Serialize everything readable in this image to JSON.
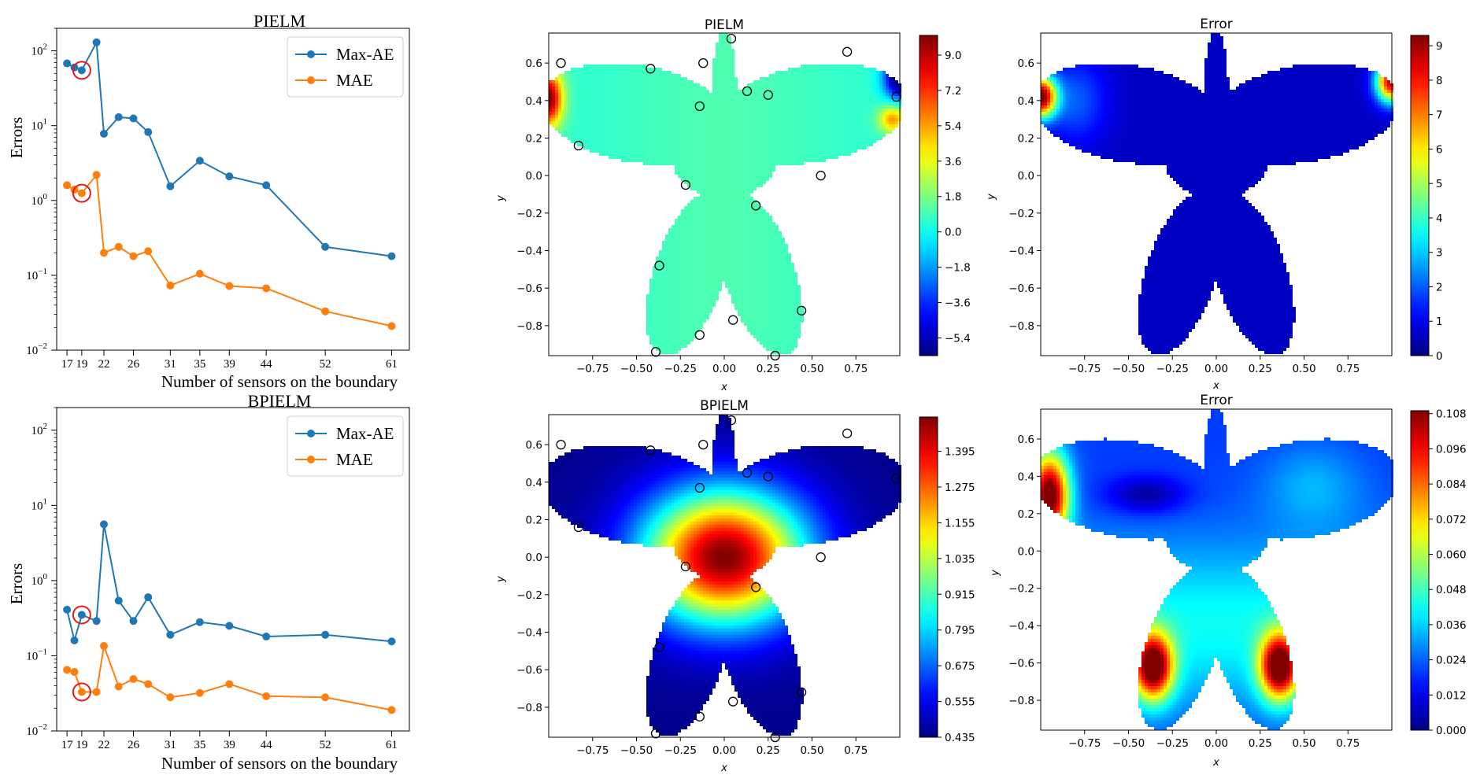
{
  "colors": {
    "max_ae": "#1f77b4",
    "mae": "#ff7f0e",
    "highlight": "#e31a1c"
  },
  "chart_data": [
    {
      "id": "pielm-errors",
      "type": "line",
      "title": "PIELM",
      "xlabel": "Number of sensors on the boundary",
      "ylabel": "Errors",
      "yscale": "log",
      "ylim": [
        0.01,
        200
      ],
      "yticks": [
        "10^{-2}",
        "10^{-1}",
        "10^{0}",
        "10^{1}",
        "10^{2}"
      ],
      "x_ticks": [
        17,
        19,
        22,
        26,
        31,
        35,
        39,
        44,
        52,
        61
      ],
      "legend": "top-right",
      "highlight_x": 19,
      "series": [
        {
          "name": "Max-AE",
          "color": "#1f77b4",
          "x": [
            17,
            18,
            19,
            21,
            22,
            24,
            26,
            28,
            31,
            35,
            39,
            44,
            52,
            61
          ],
          "y": [
            68,
            60,
            55,
            130,
            7.8,
            13,
            12.5,
            8.2,
            1.55,
            3.4,
            2.1,
            1.6,
            0.24,
            0.18
          ]
        },
        {
          "name": "MAE",
          "color": "#ff7f0e",
          "x": [
            17,
            18,
            19,
            21,
            22,
            24,
            26,
            28,
            31,
            35,
            39,
            44,
            52,
            61
          ],
          "y": [
            1.6,
            1.4,
            1.25,
            2.2,
            0.2,
            0.24,
            0.18,
            0.21,
            0.073,
            0.105,
            0.072,
            0.067,
            0.033,
            0.021
          ]
        }
      ]
    },
    {
      "id": "bpielm-errors",
      "type": "line",
      "title": "BPIELM",
      "xlabel": "Number of sensors on the boundary",
      "ylabel": "Errors",
      "yscale": "log",
      "ylim": [
        0.01,
        200
      ],
      "yticks": [
        "10^{-2}",
        "10^{-1}",
        "10^{0}",
        "10^{1}",
        "10^{2}"
      ],
      "x_ticks": [
        17,
        19,
        22,
        26,
        31,
        35,
        39,
        44,
        52,
        61
      ],
      "legend": "top-right",
      "highlight_x": 19,
      "series": [
        {
          "name": "Max-AE",
          "color": "#1f77b4",
          "x": [
            17,
            18,
            19,
            21,
            22,
            24,
            26,
            28,
            31,
            35,
            39,
            44,
            52,
            61
          ],
          "y": [
            0.41,
            0.16,
            0.35,
            0.29,
            5.6,
            0.54,
            0.29,
            0.6,
            0.19,
            0.28,
            0.25,
            0.18,
            0.19,
            0.155
          ]
        },
        {
          "name": "MAE",
          "color": "#ff7f0e",
          "x": [
            17,
            18,
            19,
            21,
            22,
            24,
            26,
            28,
            31,
            35,
            39,
            44,
            52,
            61
          ],
          "y": [
            0.065,
            0.061,
            0.033,
            0.033,
            0.135,
            0.039,
            0.049,
            0.042,
            0.028,
            0.032,
            0.042,
            0.029,
            0.028,
            0.019
          ]
        }
      ]
    },
    {
      "id": "pielm-field",
      "type": "heatmap",
      "title": "PIELM",
      "xlabel": "x",
      "ylabel": "y",
      "xlim": [
        -1,
        1
      ],
      "ylim": [
        -0.96,
        0.76
      ],
      "x_ticks": [
        "−0.75",
        "−0.50",
        "−0.25",
        "0.00",
        "0.25",
        "0.50",
        "0.75"
      ],
      "y_ticks": [
        "0.6",
        "0.4",
        "0.2",
        "0.0",
        "−0.2",
        "−0.4",
        "−0.6",
        "−0.8"
      ],
      "colormap": "jet",
      "colorbar": {
        "min": -6.3,
        "max": 10.0,
        "ticks": [
          "9.0",
          "7.2",
          "5.4",
          "3.6",
          "1.8",
          "0.0",
          "−1.8",
          "−3.6",
          "−5.4"
        ],
        "tick_values": [
          9.0,
          7.2,
          5.4,
          3.6,
          1.8,
          0.0,
          -1.8,
          -3.6,
          -5.4
        ]
      },
      "field": "pielm",
      "sensors": true
    },
    {
      "id": "pielm-error",
      "type": "heatmap",
      "title": "Error",
      "xlabel": "x",
      "ylabel": "y",
      "xlim": [
        -1,
        1
      ],
      "ylim": [
        -0.96,
        0.76
      ],
      "x_ticks": [
        "−0.75",
        "−0.50",
        "−0.25",
        "0.00",
        "0.25",
        "0.50",
        "0.75"
      ],
      "y_ticks": [
        "0.6",
        "0.4",
        "0.2",
        "0.0",
        "−0.2",
        "−0.4",
        "−0.6",
        "−0.8"
      ],
      "colormap": "jet",
      "colorbar": {
        "min": 0,
        "max": 9.3,
        "ticks": [
          "9",
          "8",
          "7",
          "6",
          "5",
          "4",
          "3",
          "2",
          "1",
          "0"
        ],
        "tick_values": [
          9,
          8,
          7,
          6,
          5,
          4,
          3,
          2,
          1,
          0
        ]
      },
      "field": "pielm_error",
      "sensors": false
    },
    {
      "id": "bpielm-field",
      "type": "heatmap",
      "title": "BPIELM",
      "xlabel": "x",
      "ylabel": "y",
      "xlim": [
        -1,
        1
      ],
      "ylim": [
        -0.96,
        0.76
      ],
      "x_ticks": [
        "−0.75",
        "−0.50",
        "−0.25",
        "0.00",
        "0.25",
        "0.50",
        "0.75"
      ],
      "y_ticks": [
        "0.6",
        "0.4",
        "0.2",
        "0.0",
        "−0.2",
        "−0.4",
        "−0.6",
        "−0.8"
      ],
      "colormap": "jet",
      "colorbar": {
        "min": 0.435,
        "max": 1.51,
        "ticks": [
          "1.395",
          "1.275",
          "1.155",
          "1.035",
          "0.915",
          "0.795",
          "0.675",
          "0.555",
          "0.435"
        ],
        "tick_values": [
          1.395,
          1.275,
          1.155,
          1.035,
          0.915,
          0.795,
          0.675,
          0.555,
          0.435
        ]
      },
      "field": "bpielm",
      "sensors": true
    },
    {
      "id": "bpielm-error",
      "type": "heatmap",
      "title": "Error",
      "xlabel": "x",
      "ylabel": "y",
      "xlim": [
        -1,
        1
      ],
      "ylim": [
        -0.96,
        0.76
      ],
      "x_ticks": [
        "−0.75",
        "−0.50",
        "−0.25",
        "0.00",
        "0.25",
        "0.50",
        "0.75"
      ],
      "y_ticks": [
        "0.6",
        "0.4",
        "0.2",
        "0.0",
        "−0.2",
        "−0.4",
        "−0.6",
        "−0.8"
      ],
      "colormap": "jet",
      "colorbar": {
        "min": 0,
        "max": 0.109,
        "ticks": [
          "0.108",
          "0.096",
          "0.084",
          "0.072",
          "0.060",
          "0.048",
          "0.036",
          "0.024",
          "0.012",
          "0.000"
        ],
        "tick_values": [
          0.108,
          0.096,
          0.084,
          0.072,
          0.06,
          0.048,
          0.036,
          0.024,
          0.012,
          0.0
        ]
      },
      "field": "bpielm_error",
      "sensors": false
    }
  ],
  "sensor_points": [
    [
      -0.93,
      0.6
    ],
    [
      -0.42,
      0.57
    ],
    [
      -0.12,
      0.6
    ],
    [
      0.04,
      0.73
    ],
    [
      0.7,
      0.66
    ],
    [
      0.98,
      0.42
    ],
    [
      -0.14,
      0.37
    ],
    [
      0.13,
      0.45
    ],
    [
      0.25,
      0.43
    ],
    [
      -0.83,
      0.16
    ],
    [
      -0.22,
      -0.05
    ],
    [
      0.55,
      0.0
    ],
    [
      0.18,
      -0.16
    ],
    [
      -0.37,
      -0.48
    ],
    [
      0.44,
      -0.72
    ],
    [
      -0.14,
      -0.85
    ],
    [
      0.05,
      -0.77
    ],
    [
      -0.39,
      -0.94
    ],
    [
      0.29,
      -0.96
    ]
  ]
}
